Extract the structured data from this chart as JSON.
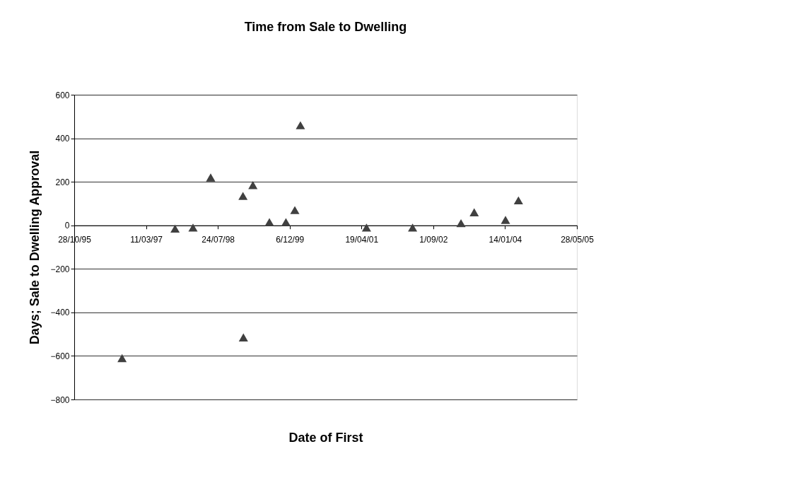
{
  "chart_data": {
    "type": "scatter",
    "title": "Time from Sale to Dwelling",
    "xlabel": "Date of First",
    "ylabel": "Days; Sale to Dwelling Approval",
    "x": [
      "1996-09-25",
      "1997-09-29",
      "1998-02-01",
      "1998-06-04",
      "1999-01-15",
      "1999-03-25",
      "1999-01-18",
      "1999-07-18",
      "1999-11-10",
      "2000-01-11",
      "2000-02-19",
      "2001-05-24",
      "2002-04-10",
      "2003-03-13",
      "2003-06-13",
      "2004-01-17",
      "2004-04-16"
    ],
    "series": [
      {
        "color": "#404040",
        "values": [
          -610,
          -15,
          -10,
          220,
          135,
          185,
          -515,
          15,
          15,
          70,
          460,
          -10,
          -10,
          10,
          60,
          25,
          115
        ]
      }
    ],
    "xlim": [
      "1995-10-28",
      "2005-05-28"
    ],
    "xticks": [
      {
        "value": "1995-10-28",
        "label": "28/10/95"
      },
      {
        "value": "1997-03-11",
        "label": "11/03/97"
      },
      {
        "value": "1998-07-24",
        "label": "24/07/98"
      },
      {
        "value": "1999-12-06",
        "label": "6/12/99"
      },
      {
        "value": "2001-04-19",
        "label": "19/04/01"
      },
      {
        "value": "2002-09-01",
        "label": "1/09/02"
      },
      {
        "value": "2004-01-14",
        "label": "14/01/04"
      },
      {
        "value": "2005-05-28",
        "label": "28/05/05"
      }
    ],
    "ylim": [
      -800,
      600
    ],
    "yticks": [
      -800,
      -600,
      -400,
      -200,
      0,
      200,
      400,
      600
    ],
    "grid": "y",
    "marker": "triangle"
  }
}
